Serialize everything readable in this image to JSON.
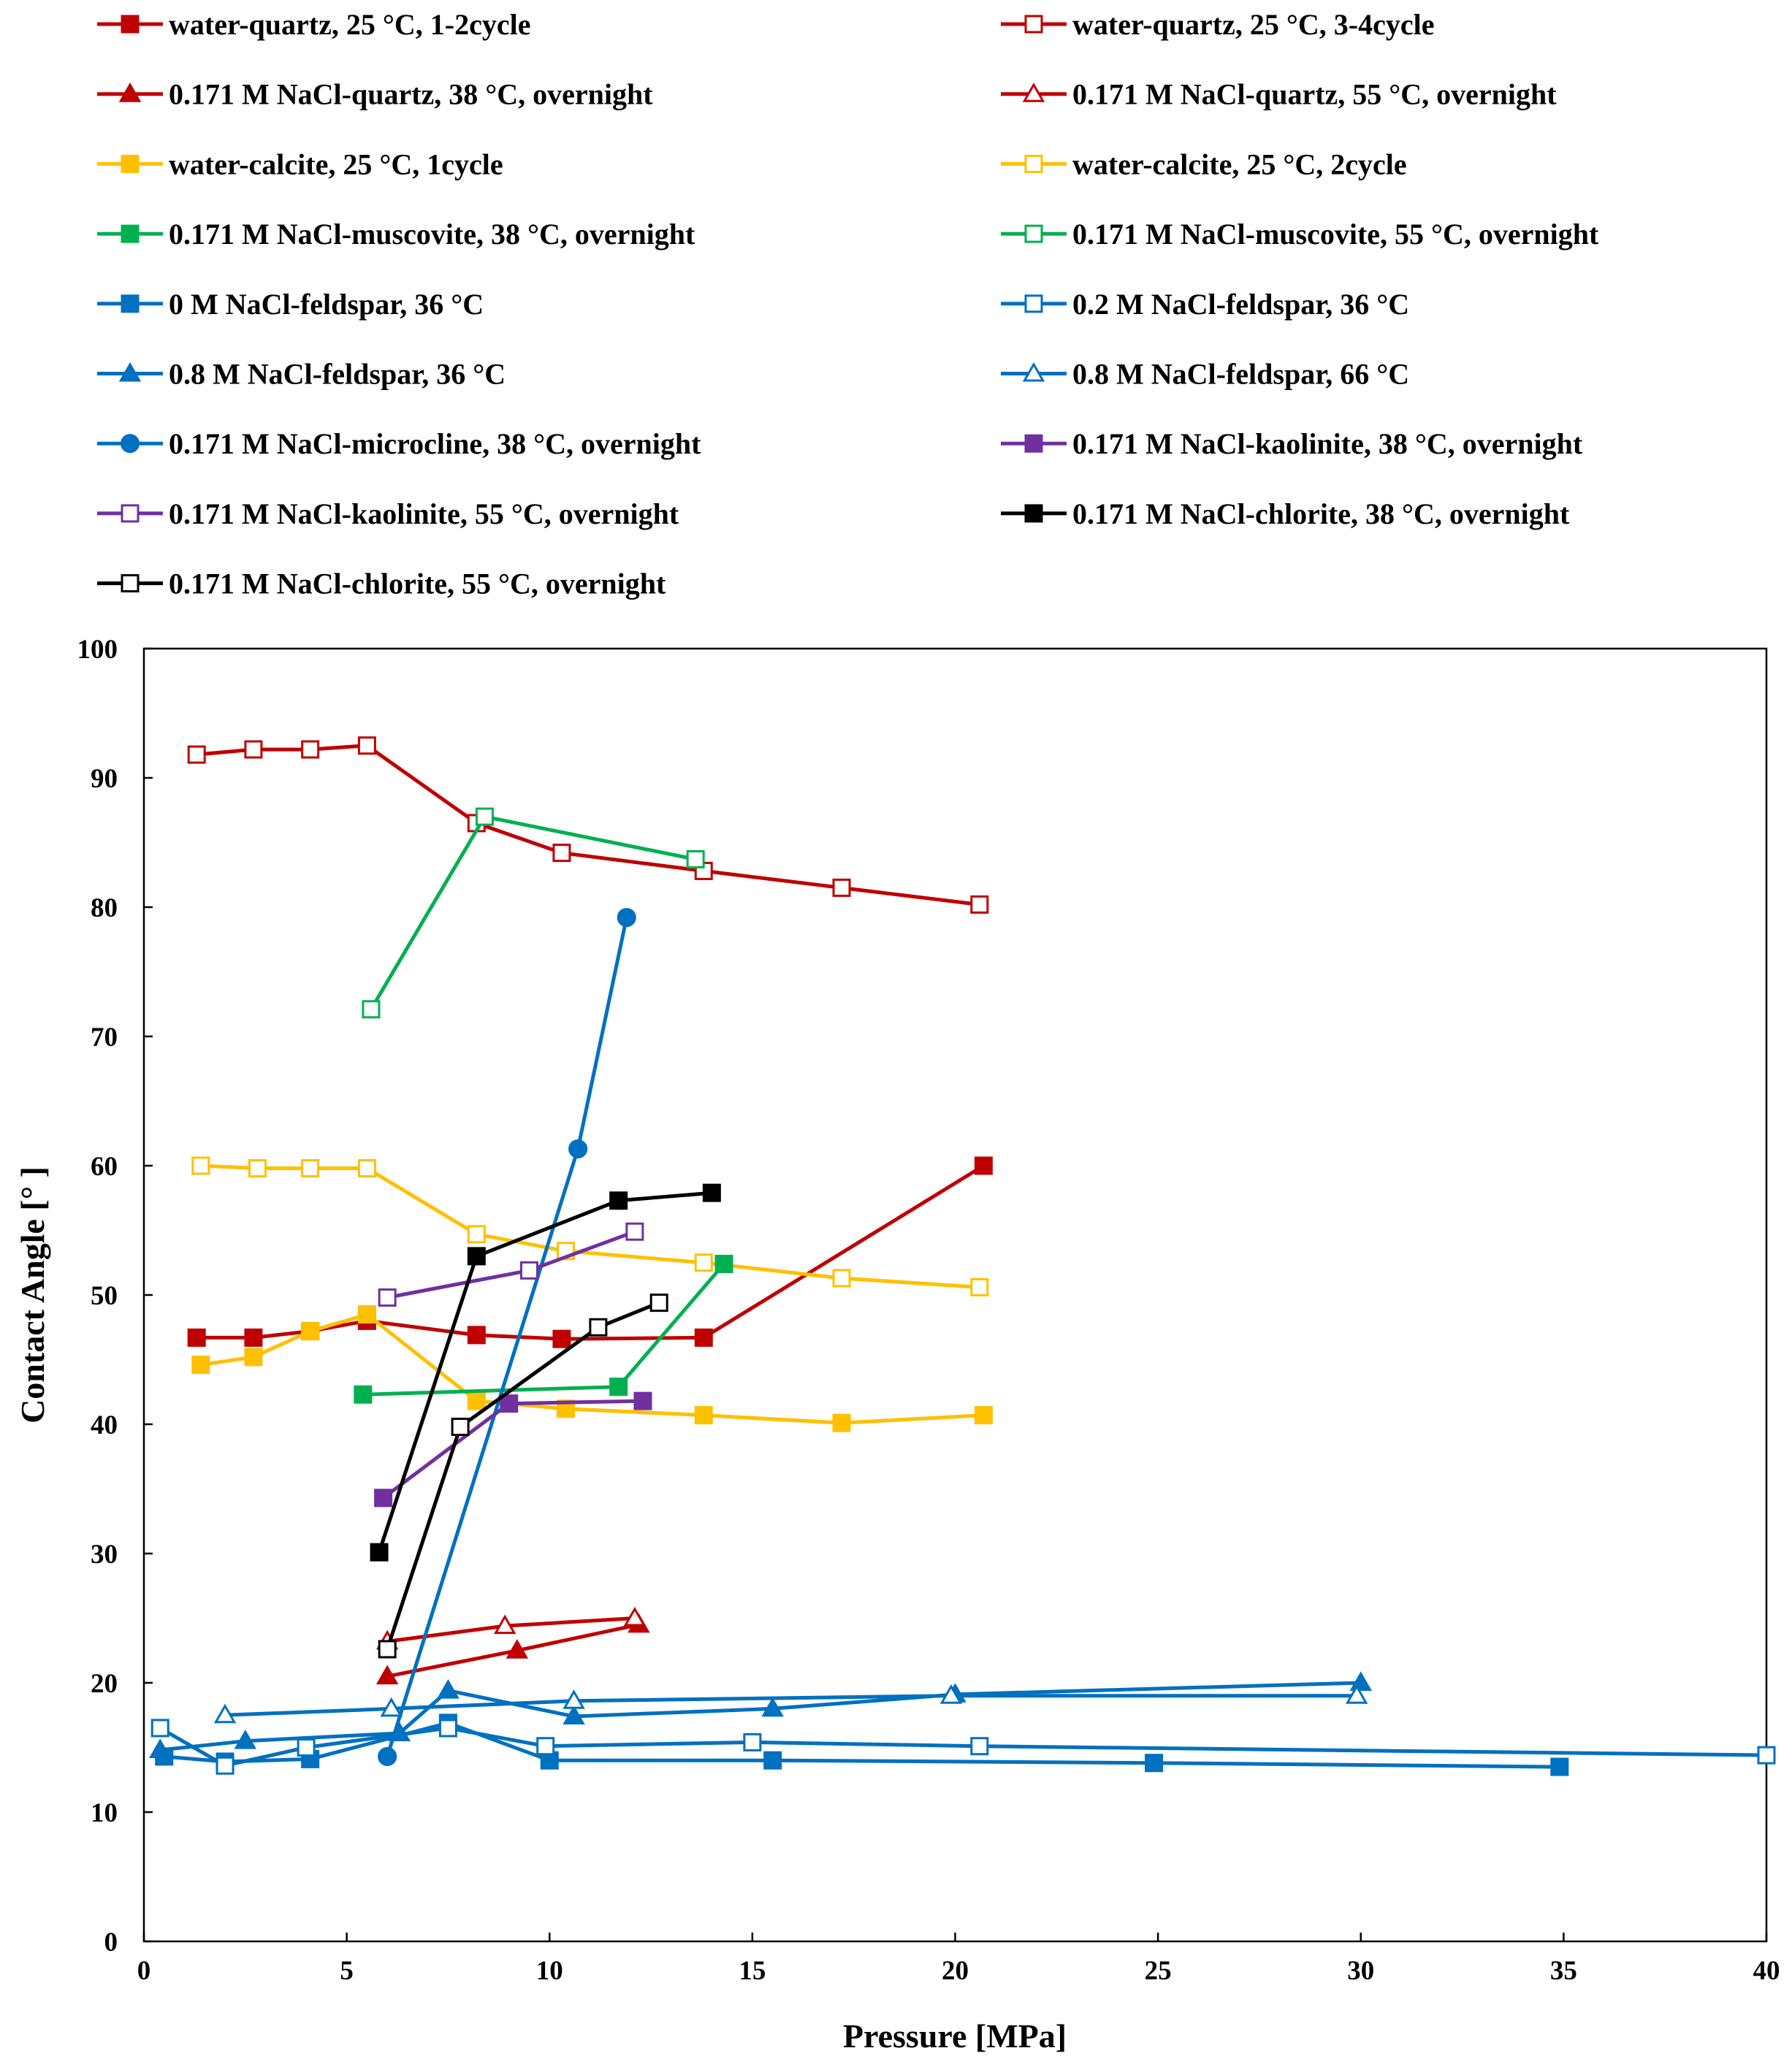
{
  "chart_data": {
    "type": "line",
    "title": "",
    "xlabel": "Pressure [MPa]",
    "ylabel": "Contact  Angle [°  ]",
    "xlim": [
      0,
      40
    ],
    "ylim": [
      0,
      100
    ],
    "xticks": [
      "0",
      "5",
      "10",
      "15",
      "20",
      "25",
      "30",
      "35",
      "40"
    ],
    "yticks": [
      "0",
      "10",
      "20",
      "30",
      "40",
      "50",
      "60",
      "70",
      "80",
      "90",
      "100"
    ],
    "grid": false,
    "legend_position": "top",
    "series": [
      {
        "name": "water-quartz, 25 °C, 1-2cycle",
        "color": "#C00000",
        "marker": "square",
        "filled": true,
        "x": [
          1.3,
          2.7,
          4.1,
          5.5,
          8.2,
          10.3,
          13.8,
          20.7
        ],
        "y": [
          46.7,
          46.7,
          47.2,
          48.0,
          46.9,
          46.6,
          46.7,
          60.0
        ]
      },
      {
        "name": "water-quartz, 25 °C, 3-4cycle",
        "color": "#C00000",
        "marker": "square",
        "filled": false,
        "x": [
          1.3,
          2.7,
          4.1,
          5.5,
          8.2,
          10.3,
          13.8,
          17.2,
          20.6
        ],
        "y": [
          91.8,
          92.2,
          92.2,
          92.5,
          86.5,
          84.2,
          82.8,
          81.5,
          80.2
        ]
      },
      {
        "name": "0.171 M NaCl-quartz, 38 °C,  overnight",
        "color": "#C00000",
        "marker": "triangle",
        "filled": true,
        "x": [
          6.0,
          9.2,
          12.2
        ],
        "y": [
          20.5,
          22.5,
          24.5
        ]
      },
      {
        "name": "0.171 M NaCl-quartz, 55 °C,  overnight",
        "color": "#C00000",
        "marker": "triangle",
        "filled": false,
        "x": [
          6.0,
          8.9,
          12.1
        ],
        "y": [
          23.2,
          24.4,
          25.0
        ]
      },
      {
        "name": "water-calcite, 25 °C, 1cycle",
        "color": "#FFC000",
        "marker": "square",
        "filled": true,
        "x": [
          1.4,
          2.7,
          4.1,
          5.5,
          8.2,
          10.4,
          13.8,
          17.2,
          20.7
        ],
        "y": [
          44.6,
          45.2,
          47.2,
          48.5,
          41.8,
          41.2,
          40.7,
          40.1,
          40.7
        ]
      },
      {
        "name": "water-calcite, 25 °C, 2cycle",
        "color": "#FFC000",
        "marker": "square",
        "filled": false,
        "x": [
          1.4,
          2.8,
          4.1,
          5.5,
          8.2,
          10.4,
          13.8,
          17.2,
          20.6
        ],
        "y": [
          60.0,
          59.8,
          59.8,
          59.8,
          54.7,
          53.4,
          52.5,
          51.3,
          50.6
        ]
      },
      {
        "name": "0.171 M NaCl-muscovite, 38 °C,  overnight",
        "color": "#00B050",
        "marker": "square",
        "filled": true,
        "x": [
          5.4,
          11.7,
          14.3
        ],
        "y": [
          42.3,
          42.9,
          52.4
        ]
      },
      {
        "name": "0.171 M NaCl-muscovite, 55 °C,  overnight",
        "color": "#00B050",
        "marker": "square",
        "filled": false,
        "x": [
          5.6,
          8.4,
          13.6
        ],
        "y": [
          72.1,
          87.0,
          83.7
        ]
      },
      {
        "name": "0 M NaCl-feldspar, 36 °C",
        "color": "#0070C0",
        "marker": "square",
        "filled": true,
        "x": [
          0.5,
          2.0,
          4.1,
          7.5,
          10.0,
          15.5,
          24.9,
          34.9
        ],
        "y": [
          14.3,
          13.9,
          14.1,
          16.9,
          14.0,
          14.0,
          13.8,
          13.5
        ]
      },
      {
        "name": "0.2 M NaCl-feldspar, 36 °C",
        "color": "#0070C0",
        "marker": "square",
        "filled": false,
        "x": [
          0.4,
          2.0,
          4.0,
          7.5,
          9.9,
          15.0,
          20.6,
          40.0
        ],
        "y": [
          16.5,
          13.6,
          15.0,
          16.5,
          15.1,
          15.4,
          15.1,
          14.4
        ]
      },
      {
        "name": "0.8 M NaCl-feldspar, 36 °C",
        "color": "#0070C0",
        "marker": "triangle",
        "filled": true,
        "x": [
          0.4,
          2.5,
          6.3,
          7.5,
          10.6,
          15.5,
          20.0,
          30.0
        ],
        "y": [
          14.8,
          15.5,
          16.1,
          19.4,
          17.4,
          18.0,
          19.1,
          20.0
        ]
      },
      {
        "name": "0.8 M NaCl-feldspar, 66 °C",
        "color": "#0070C0",
        "marker": "triangle",
        "filled": false,
        "x": [
          2.0,
          6.1,
          10.6,
          19.9,
          29.9
        ],
        "y": [
          17.5,
          18.0,
          18.6,
          19.0,
          19.0
        ]
      },
      {
        "name": "0.171 M NaCl-microcline, 38 °C,  overnight",
        "color": "#0070C0",
        "marker": "circle",
        "filled": true,
        "x": [
          6.0,
          10.7,
          11.9
        ],
        "y": [
          14.3,
          61.3,
          79.2
        ]
      },
      {
        "name": "0.171 M NaCl-kaolinite, 38 °C,  overnight",
        "color": "#7030A0",
        "marker": "square",
        "filled": true,
        "x": [
          5.9,
          9.0,
          12.3
        ],
        "y": [
          34.3,
          41.6,
          41.8
        ]
      },
      {
        "name": "0.171 M NaCl-kaolinite, 55 °C,  overnight",
        "color": "#7030A0",
        "marker": "square",
        "filled": false,
        "x": [
          6.0,
          9.5,
          12.1
        ],
        "y": [
          49.8,
          51.9,
          54.9
        ]
      },
      {
        "name": "0.171 M NaCl-chlorite, 38 °C,  overnight",
        "color": "#000000",
        "marker": "square",
        "filled": true,
        "x": [
          5.8,
          8.2,
          11.7,
          14.0
        ],
        "y": [
          30.1,
          53.0,
          57.3,
          57.9
        ]
      },
      {
        "name": "0.171 M NaCl-chlorite, 55 °C,  overnight",
        "color": "#000000",
        "marker": "square",
        "filled": false,
        "x": [
          6.0,
          7.8,
          11.2,
          12.7
        ],
        "y": [
          22.6,
          39.8,
          47.5,
          49.4
        ]
      }
    ]
  }
}
